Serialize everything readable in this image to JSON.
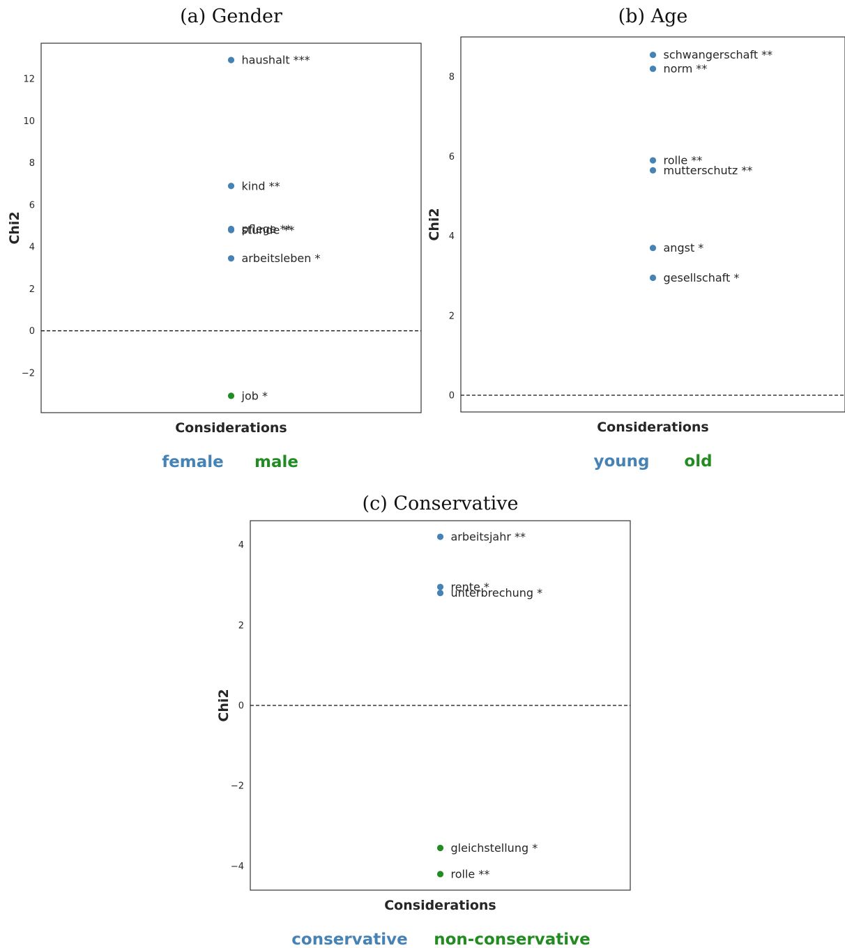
{
  "colors": {
    "group_a": "#4682b4",
    "group_b": "#228b22"
  },
  "chart_data": [
    {
      "type": "scatter",
      "title": "(a) Gender",
      "xlabel": "Considerations",
      "ylabel": "Chi2",
      "ylim": [
        -3.9,
        13.7
      ],
      "yticks": [
        -2,
        0,
        2,
        4,
        6,
        8,
        10,
        12
      ],
      "baseline": 0,
      "grid": false,
      "legend": {
        "placement": "below",
        "entries": [
          {
            "label": "female",
            "color": "#4682b4"
          },
          {
            "label": "male",
            "color": "#228b22"
          }
        ]
      },
      "points": [
        {
          "label": "haushalt ***",
          "y": 12.9,
          "color": "#4682b4"
        },
        {
          "label": "kind **",
          "y": 6.9,
          "color": "#4682b4"
        },
        {
          "label": "pflege **",
          "y": 4.85,
          "color": "#4682b4"
        },
        {
          "label": "stunde **",
          "y": 4.8,
          "color": "#4682b4"
        },
        {
          "label": "arbeitsleben *",
          "y": 3.45,
          "color": "#4682b4"
        },
        {
          "label": "job *",
          "y": -3.1,
          "color": "#228b22"
        }
      ]
    },
    {
      "type": "scatter",
      "title": "(b) Age",
      "xlabel": "Considerations",
      "ylabel": "Chi2",
      "ylim": [
        -0.42,
        9.0
      ],
      "yticks": [
        0,
        2,
        4,
        6,
        8
      ],
      "baseline": 0,
      "grid": false,
      "legend": {
        "placement": "below",
        "entries": [
          {
            "label": "young",
            "color": "#4682b4"
          },
          {
            "label": "old",
            "color": "#228b22"
          }
        ]
      },
      "points": [
        {
          "label": "schwangerschaft **",
          "y": 8.55,
          "color": "#4682b4"
        },
        {
          "label": "norm **",
          "y": 8.2,
          "color": "#4682b4"
        },
        {
          "label": "rolle **",
          "y": 5.9,
          "color": "#4682b4"
        },
        {
          "label": "mutterschutz **",
          "y": 5.65,
          "color": "#4682b4"
        },
        {
          "label": "angst *",
          "y": 3.7,
          "color": "#4682b4"
        },
        {
          "label": "gesellschaft *",
          "y": 2.95,
          "color": "#4682b4"
        }
      ]
    },
    {
      "type": "scatter",
      "title": "(c) Conservative",
      "xlabel": "Considerations",
      "ylabel": "Chi2",
      "ylim": [
        -4.6,
        4.6
      ],
      "yticks": [
        -4,
        -2,
        0,
        2,
        4
      ],
      "baseline": 0,
      "grid": false,
      "legend": {
        "placement": "below",
        "entries": [
          {
            "label": "conservative",
            "color": "#4682b4"
          },
          {
            "label": "non-conservative",
            "color": "#228b22"
          }
        ]
      },
      "points": [
        {
          "label": "arbeitsjahr **",
          "y": 4.2,
          "color": "#4682b4"
        },
        {
          "label": "rente *",
          "y": 2.95,
          "color": "#4682b4"
        },
        {
          "label": "unterbrechung *",
          "y": 2.8,
          "color": "#4682b4"
        },
        {
          "label": "gleichstellung *",
          "y": -3.55,
          "color": "#228b22"
        },
        {
          "label": "rolle **",
          "y": -4.2,
          "color": "#228b22"
        }
      ]
    }
  ]
}
